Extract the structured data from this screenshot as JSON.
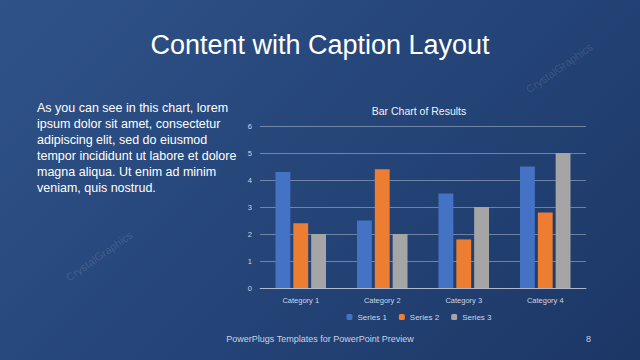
{
  "slide": {
    "title": "Content with Caption Layout",
    "caption": "As you can see in this chart, lorem ipsum dolor sit amet, consectetur adipiscing elit, sed do eiusmod tempor incididunt ut labore et dolore magna aliqua. Ut enim ad minim veniam, quis nostrud.",
    "footer": "PowerPlugs Templates for PowerPoint Preview",
    "page": "8",
    "watermark": "CrystalGraphics"
  },
  "chart_data": {
    "type": "bar",
    "title": "Bar Chart of Results",
    "categories": [
      "Category 1",
      "Category 2",
      "Category 3",
      "Category 4"
    ],
    "series": [
      {
        "name": "Series 1",
        "color": "#4472c4",
        "values": [
          4.3,
          2.5,
          3.5,
          4.5
        ]
      },
      {
        "name": "Series 2",
        "color": "#ed7d31",
        "values": [
          2.4,
          4.4,
          1.8,
          2.8
        ]
      },
      {
        "name": "Series 3",
        "color": "#a5a5a5",
        "values": [
          2,
          2,
          3,
          5
        ]
      }
    ],
    "ylim": [
      0,
      6
    ],
    "yticks": [
      0,
      1,
      2,
      3,
      4,
      5,
      6
    ],
    "grid": true,
    "legend": "bottom"
  }
}
